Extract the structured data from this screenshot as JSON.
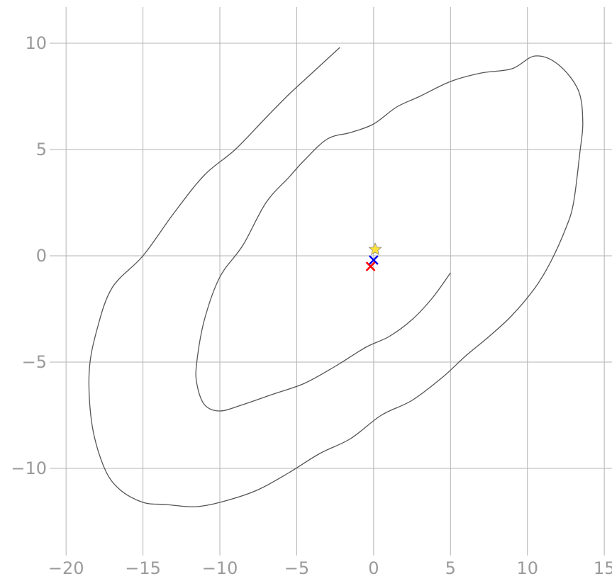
{
  "chart_data": {
    "type": "line",
    "title": "",
    "xlabel": "",
    "ylabel": "",
    "xlim": [
      -20.7,
      15.5
    ],
    "ylim": [
      -13.9,
      11.7
    ],
    "xticks": [
      -20,
      -15,
      -10,
      -5,
      0,
      5,
      10,
      15
    ],
    "yticks": [
      -10,
      -5,
      0,
      5,
      10
    ],
    "xtick_labels": [
      "−20",
      "−15",
      "−10",
      "−5",
      "0",
      "5",
      "10",
      "15"
    ],
    "ytick_labels": [
      "−10",
      "−5",
      "0",
      "5",
      "10"
    ],
    "grid": true,
    "series": [
      {
        "color": "#555555",
        "x": [
          5.0,
          3.8,
          2.5,
          1.0,
          -0.5,
          -2.5,
          -4.5,
          -6.5,
          -8.5,
          -10.0,
          -11.0,
          -11.5,
          -11.5,
          -11.0,
          -10.0,
          -8.5,
          -7.0,
          -5.5,
          -4.5,
          -3.0,
          -1.5,
          0.0,
          1.5,
          3.0,
          5.0,
          7.0,
          9.0,
          10.5,
          12.0,
          13.3,
          13.6,
          13.4,
          13.0,
          12.5,
          11.5,
          10.5,
          9.0,
          7.5,
          6.0,
          4.5,
          2.5,
          0.5,
          -1.5,
          -3.5,
          -5.5,
          -7.5,
          -9.5,
          -11.5,
          -13.5,
          -15.0,
          -16.5,
          -17.5,
          -18.3,
          -18.5,
          -18.0,
          -17.0,
          -15.0,
          -13.0,
          -11.0,
          -9.0,
          -7.0,
          -5.5,
          -4.0,
          -2.2
        ],
        "y": [
          -0.8,
          -2.0,
          -3.0,
          -3.8,
          -4.3,
          -5.2,
          -6.0,
          -6.5,
          -7.0,
          -7.3,
          -7.0,
          -6.0,
          -5.0,
          -3.0,
          -1.0,
          0.5,
          2.5,
          3.7,
          4.5,
          5.5,
          5.8,
          6.2,
          7.0,
          7.5,
          8.2,
          8.6,
          8.8,
          9.4,
          9.0,
          7.8,
          6.3,
          4.8,
          2.5,
          1.3,
          -0.3,
          -1.5,
          -2.8,
          -3.8,
          -4.7,
          -5.7,
          -6.8,
          -7.5,
          -8.6,
          -9.3,
          -10.2,
          -11.0,
          -11.5,
          -11.8,
          -11.7,
          -11.6,
          -11.0,
          -10.0,
          -8.0,
          -5.5,
          -3.5,
          -1.5,
          0.0,
          2.0,
          3.8,
          5.0,
          6.5,
          7.6,
          8.6,
          9.8
        ]
      }
    ],
    "markers": [
      {
        "name": "start",
        "shape": "star",
        "color": "#ffe23a",
        "x": 0.1,
        "y": 0.3
      },
      {
        "name": "agent",
        "shape": "x",
        "color": "#0000ee",
        "x": 0.0,
        "y": -0.2
      },
      {
        "name": "goal",
        "shape": "x",
        "color": "#ff0000",
        "x": -0.2,
        "y": -0.5
      }
    ]
  }
}
